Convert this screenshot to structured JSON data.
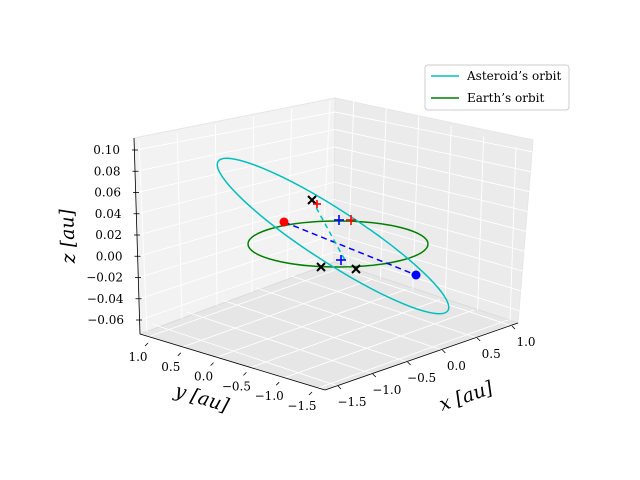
{
  "chart_data": {
    "type": "line",
    "projection": "3d",
    "grid": true,
    "legend_position": "top-right",
    "axes": {
      "x": {
        "label": "x [au]",
        "ticks": [
          "−1.5",
          "−1.0",
          "−0.5",
          "0.0",
          "0.5",
          "1.0"
        ],
        "range": [
          -1.6,
          1.3
        ]
      },
      "y": {
        "label": "y [au]",
        "ticks": [
          "1.0",
          "0.5",
          "0.0",
          "−0.5",
          "−1.0",
          "−1.5"
        ],
        "range": [
          -1.6,
          1.3
        ]
      },
      "z": {
        "label": "z [au]",
        "ticks": [
          "0.10",
          "0.08",
          "0.06",
          "0.04",
          "0.02",
          "0.00",
          "−0.02",
          "−0.04",
          "−0.06"
        ],
        "range": [
          -0.07,
          0.105
        ]
      }
    },
    "series": [
      {
        "name": "Asteroid’s orbit",
        "color": "#00bfbf",
        "shape": "ellipse",
        "semi_major_axis": 1.64,
        "eccentricity": 0.38,
        "inclination_deg": 3.7
      },
      {
        "name": "Earth’s orbit",
        "color": "#008000",
        "shape": "circle",
        "radius": 1.0
      }
    ],
    "markers": [
      {
        "label": "asteroid perihelion",
        "symbol": "dot",
        "color": "#ff0000"
      },
      {
        "label": "asteroid aphelion",
        "symbol": "dot",
        "color": "#0000ff"
      },
      {
        "label": "node crossing",
        "symbol": "x",
        "color": "#000000"
      },
      {
        "label": "node crossing",
        "symbol": "x",
        "color": "#000000"
      },
      {
        "label": "node crossing",
        "symbol": "x",
        "color": "#000000"
      },
      {
        "label": "red cross",
        "symbol": "plus",
        "color": "#ff0000"
      },
      {
        "label": "blue cross",
        "symbol": "plus",
        "color": "#0000ff"
      },
      {
        "label": "blue cross",
        "symbol": "plus",
        "color": "#0000ff"
      }
    ],
    "line_of_apsides": {
      "color": "#0000ff",
      "style": "dashed"
    },
    "line_of_nodes": {
      "color": "#00bfbf",
      "style": "dashed"
    }
  }
}
